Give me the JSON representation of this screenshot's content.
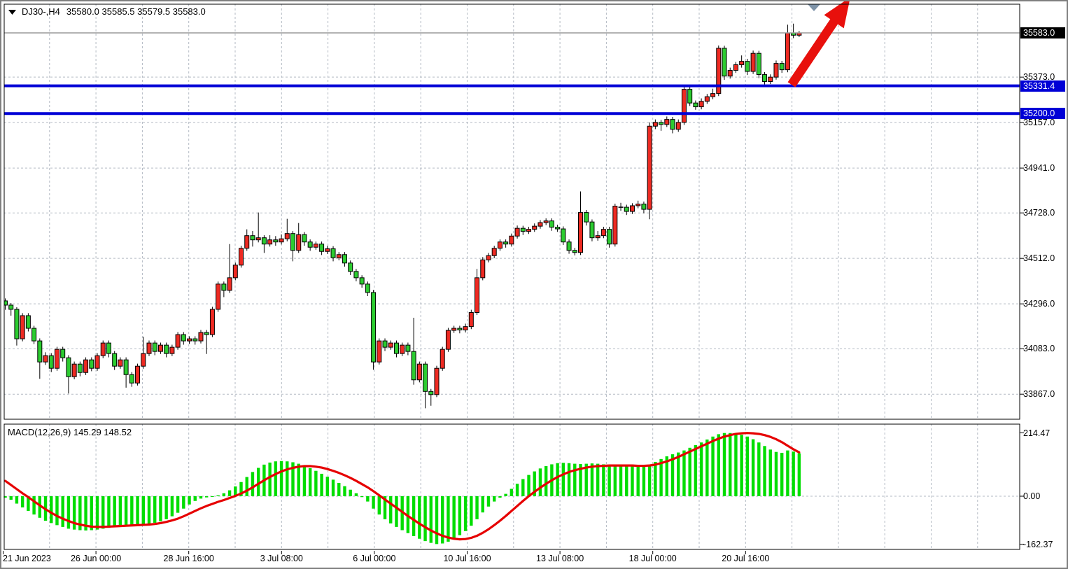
{
  "header": {
    "symbol_period": "DJ30-,H4",
    "ohlc_readout": "35580.0 35585.5 35579.5 35583.0"
  },
  "indicator_readout": {
    "name_params": "MACD(12,26,9)",
    "values": "145.29 148.52"
  },
  "colors": {
    "up_candle": "#ee2a22",
    "down_candle": "#2ccc30",
    "candle_border": "#000000",
    "wick": "#000000",
    "grid": "#b3bac3",
    "level_line": "#0000d6",
    "level_box_bg": "#0000d6",
    "current_price_line": "#9a9a9a",
    "current_price_bg": "#000000",
    "macd_histogram": "#00dd00",
    "macd_signal": "#e60000",
    "arrow": "#e8100c",
    "shift_marker": "#7e93a8",
    "panel_border": "#000000",
    "axis_text": "#000000"
  },
  "chart_data": [
    {
      "type": "candlestick",
      "symbol": "DJ30-",
      "timeframe": "H4",
      "grid": true,
      "y_ticks": [
        "35373.0",
        "35157.0",
        "34941.0",
        "34728.0",
        "34512.0",
        "34296.0",
        "34083.0",
        "33867.0"
      ],
      "x_labels": [
        "21 Jun 2023",
        "26 Jun 00:00",
        "28 Jun 16:00",
        "3 Jul 08:00",
        "6 Jul 00:00",
        "10 Jul 16:00",
        "13 Jul 08:00",
        "18 Jul 00:00",
        "20 Jul 16:00"
      ],
      "current_price": {
        "label": "35583.0",
        "value": 35583.0
      },
      "horizontal_levels": [
        {
          "label": "35331.4",
          "value": 35331.4
        },
        {
          "label": "35200.0",
          "value": 35200.0
        }
      ],
      "candles": [
        [
          34310,
          34322,
          34268,
          34290
        ],
        [
          34290,
          34300,
          34240,
          34270
        ],
        [
          34270,
          34280,
          34098,
          34130
        ],
        [
          34130,
          34252,
          34118,
          34240
        ],
        [
          34240,
          34252,
          34165,
          34180
        ],
        [
          34180,
          34192,
          34105,
          34120
        ],
        [
          34120,
          34132,
          33940,
          34020
        ],
        [
          34020,
          34066,
          34006,
          34050
        ],
        [
          34050,
          34062,
          33972,
          33990
        ],
        [
          33990,
          34092,
          33978,
          34080
        ],
        [
          34080,
          34092,
          34022,
          34040
        ],
        [
          34040,
          34052,
          33870,
          33950
        ],
        [
          33950,
          34022,
          33938,
          34010
        ],
        [
          34010,
          34022,
          33952,
          33970
        ],
        [
          33970,
          34042,
          33958,
          34030
        ],
        [
          34030,
          34042,
          33976,
          33990
        ],
        [
          33990,
          34062,
          33978,
          34050
        ],
        [
          34050,
          34122,
          34038,
          34110
        ],
        [
          34110,
          34122,
          34042,
          34060
        ],
        [
          34060,
          34072,
          33982,
          34000
        ],
        [
          34000,
          34042,
          33988,
          34030
        ],
        [
          34030,
          34042,
          33898,
          33960
        ],
        [
          33960,
          33972,
          33902,
          33920
        ],
        [
          33920,
          34012,
          33908,
          34000
        ],
        [
          34000,
          34140,
          33988,
          34060
        ],
        [
          34060,
          34122,
          34048,
          34110
        ],
        [
          34110,
          34122,
          34052,
          34070
        ],
        [
          34070,
          34112,
          34058,
          34100
        ],
        [
          34100,
          34112,
          34042,
          34060
        ],
        [
          34060,
          34102,
          34048,
          34090
        ],
        [
          34090,
          34162,
          34078,
          34150
        ],
        [
          34150,
          34162,
          34102,
          34120
        ],
        [
          34120,
          34142,
          34106,
          34130
        ],
        [
          34130,
          34142,
          34102,
          34120
        ],
        [
          34120,
          34172,
          34108,
          34160
        ],
        [
          34160,
          34172,
          34058,
          34150
        ],
        [
          34150,
          34282,
          34138,
          34270
        ],
        [
          34270,
          34402,
          34258,
          34390
        ],
        [
          34390,
          34402,
          34328,
          34360
        ],
        [
          34360,
          34580,
          34348,
          34420
        ],
        [
          34420,
          34492,
          34408,
          34480
        ],
        [
          34480,
          34572,
          34468,
          34560
        ],
        [
          34560,
          34650,
          34548,
          34620
        ],
        [
          34620,
          34642,
          34568,
          34600
        ],
        [
          34600,
          34730,
          34588,
          34610
        ],
        [
          34610,
          34622,
          34538,
          34580
        ],
        [
          34580,
          34622,
          34568,
          34600
        ],
        [
          34600,
          34618,
          34572,
          34590
        ],
        [
          34590,
          34626,
          34578,
          34605
        ],
        [
          34605,
          34700,
          34593,
          34630
        ],
        [
          34630,
          34642,
          34498,
          34550
        ],
        [
          34550,
          34680,
          34538,
          34625
        ],
        [
          34625,
          34637,
          34572,
          34590
        ],
        [
          34590,
          34602,
          34548,
          34565
        ],
        [
          34565,
          34592,
          34553,
          34580
        ],
        [
          34580,
          34592,
          34528,
          34545
        ],
        [
          34545,
          34572,
          34533,
          34558
        ],
        [
          34558,
          34570,
          34498,
          34515
        ],
        [
          34515,
          34542,
          34503,
          34530
        ],
        [
          34530,
          34542,
          34473,
          34490
        ],
        [
          34490,
          34502,
          34433,
          34450
        ],
        [
          34450,
          34462,
          34403,
          34420
        ],
        [
          34420,
          34432,
          34373,
          34390
        ],
        [
          34390,
          34402,
          34333,
          34350
        ],
        [
          34350,
          34362,
          33983,
          34020
        ],
        [
          34020,
          34132,
          34008,
          34120
        ],
        [
          34120,
          34132,
          34072,
          34090
        ],
        [
          34090,
          34122,
          34078,
          34110
        ],
        [
          34110,
          34122,
          34042,
          34060
        ],
        [
          34060,
          34112,
          34048,
          34100
        ],
        [
          34100,
          34112,
          34052,
          34070
        ],
        [
          34070,
          34230,
          33912,
          33935
        ],
        [
          33935,
          34022,
          33923,
          34010
        ],
        [
          34010,
          34022,
          33800,
          33880
        ],
        [
          33880,
          33892,
          33812,
          33865
        ],
        [
          33865,
          34002,
          33853,
          33990
        ],
        [
          33990,
          34092,
          33978,
          34080
        ],
        [
          34080,
          34182,
          34068,
          34170
        ],
        [
          34170,
          34192,
          34158,
          34180
        ],
        [
          34180,
          34192,
          34156,
          34172
        ],
        [
          34172,
          34202,
          34160,
          34188
        ],
        [
          34188,
          34268,
          34176,
          34255
        ],
        [
          34255,
          34462,
          34243,
          34420
        ],
        [
          34420,
          34518,
          34408,
          34505
        ],
        [
          34505,
          34538,
          34493,
          34525
        ],
        [
          34525,
          34572,
          34513,
          34560
        ],
        [
          34560,
          34602,
          34548,
          34590
        ],
        [
          34590,
          34602,
          34563,
          34580
        ],
        [
          34580,
          34630,
          34568,
          34618
        ],
        [
          34618,
          34668,
          34606,
          34655
        ],
        [
          34655,
          34667,
          34623,
          34640
        ],
        [
          34640,
          34662,
          34628,
          34650
        ],
        [
          34650,
          34678,
          34638,
          34665
        ],
        [
          34665,
          34694,
          34653,
          34682
        ],
        [
          34682,
          34702,
          34670,
          34690
        ],
        [
          34690,
          34702,
          34643,
          34660
        ],
        [
          34660,
          34672,
          34638,
          34652
        ],
        [
          34652,
          34664,
          34576,
          34590
        ],
        [
          34590,
          34602,
          34534,
          34550
        ],
        [
          34550,
          34562,
          34526,
          34540
        ],
        [
          34540,
          34830,
          34528,
          34730
        ],
        [
          34730,
          34742,
          34668,
          34685
        ],
        [
          34685,
          34697,
          34593,
          34610
        ],
        [
          34610,
          34642,
          34596,
          34620
        ],
        [
          34620,
          34662,
          34608,
          34650
        ],
        [
          34650,
          34662,
          34563,
          34580
        ],
        [
          34580,
          34772,
          34568,
          34760
        ],
        [
          34760,
          34776,
          34738,
          34755
        ],
        [
          34755,
          34767,
          34718,
          34735
        ],
        [
          34735,
          34774,
          34723,
          34762
        ],
        [
          34762,
          34786,
          34750,
          34770
        ],
        [
          34770,
          34782,
          34726,
          34745
        ],
        [
          34745,
          35158,
          34698,
          35140
        ],
        [
          35140,
          35172,
          35126,
          35158
        ],
        [
          35158,
          35170,
          35118,
          35148
        ],
        [
          35148,
          35186,
          35136,
          35172
        ],
        [
          35172,
          35184,
          35106,
          35125
        ],
        [
          35125,
          35172,
          35113,
          35158
        ],
        [
          35158,
          35328,
          35146,
          35315
        ],
        [
          35315,
          35327,
          35236,
          35250
        ],
        [
          35250,
          35262,
          35218,
          35232
        ],
        [
          35232,
          35272,
          35220,
          35258
        ],
        [
          35258,
          35293,
          35246,
          35280
        ],
        [
          35280,
          35318,
          35268,
          35295
        ],
        [
          35295,
          35523,
          35283,
          35510
        ],
        [
          35510,
          35522,
          35360,
          35378
        ],
        [
          35378,
          35418,
          35366,
          35405
        ],
        [
          35405,
          35445,
          35393,
          35432
        ],
        [
          35432,
          35476,
          35418,
          35448
        ],
        [
          35448,
          35460,
          35383,
          35400
        ],
        [
          35400,
          35499,
          35388,
          35486
        ],
        [
          35486,
          35498,
          35368,
          35385
        ],
        [
          35385,
          35397,
          35338,
          35352
        ],
        [
          35352,
          35386,
          35340,
          35373
        ],
        [
          35373,
          35452,
          35361,
          35438
        ],
        [
          35438,
          35450,
          35393,
          35408
        ],
        [
          35408,
          35622,
          35396,
          35583
        ],
        [
          35583,
          35627,
          35558,
          35572
        ],
        [
          35572,
          35592,
          35563,
          35583
        ]
      ]
    },
    {
      "type": "macd",
      "name": "MACD(12,26,9)",
      "y_ticks": [
        "214.47",
        "0.00",
        "-162.37"
      ],
      "last_macd": 145.29,
      "last_signal": 148.52,
      "histogram": [
        -5,
        -12,
        -25,
        -38,
        -50,
        -62,
        -73,
        -83,
        -91,
        -98,
        -104,
        -110,
        -113,
        -115,
        -116,
        -115,
        -113,
        -110,
        -107,
        -103,
        -100,
        -98,
        -97,
        -96,
        -95,
        -93,
        -90,
        -85,
        -78,
        -68,
        -56,
        -42,
        -28,
        -16,
        -8,
        -4,
        -2,
        3,
        10,
        20,
        33,
        48,
        65,
        82,
        96,
        107,
        114,
        118,
        119,
        118,
        115,
        110,
        103,
        95,
        86,
        76,
        66,
        56,
        45,
        34,
        22,
        10,
        -3,
        -18,
        -42,
        -62,
        -78,
        -92,
        -104,
        -115,
        -125,
        -135,
        -144,
        -152,
        -158,
        -162,
        -160,
        -154,
        -144,
        -132,
        -118,
        -100,
        -78,
        -55,
        -35,
        -18,
        -5,
        8,
        25,
        42,
        58,
        72,
        84,
        94,
        102,
        108,
        112,
        113,
        112,
        110,
        109,
        110,
        111,
        110,
        108,
        105,
        102,
        104,
        106,
        107,
        106,
        103,
        107,
        116,
        126,
        135,
        142,
        148,
        155,
        164,
        173,
        182,
        192,
        202,
        210,
        214,
        214,
        212,
        208,
        202,
        193,
        182,
        170,
        158,
        150,
        147,
        155,
        151,
        145.29
      ],
      "signal": [
        52,
        38,
        24,
        10,
        -3,
        -17,
        -31,
        -44,
        -56,
        -67,
        -76,
        -84,
        -91,
        -96,
        -100,
        -103,
        -104,
        -104,
        -103,
        -102,
        -101,
        -100,
        -99,
        -98,
        -97,
        -96,
        -94,
        -91,
        -87,
        -82,
        -76,
        -68,
        -59,
        -50,
        -41,
        -33,
        -26,
        -19,
        -13,
        -6,
        1,
        9,
        19,
        30,
        42,
        54,
        65,
        75,
        84,
        91,
        96,
        100,
        102,
        102,
        100,
        97,
        92,
        86,
        79,
        71,
        62,
        52,
        41,
        30,
        17,
        3,
        -11,
        -25,
        -39,
        -53,
        -67,
        -80,
        -93,
        -105,
        -116,
        -126,
        -134,
        -140,
        -144,
        -146,
        -145,
        -141,
        -134,
        -124,
        -112,
        -98,
        -83,
        -67,
        -50,
        -33,
        -16,
        0,
        15,
        29,
        42,
        54,
        65,
        74,
        82,
        88,
        93,
        97,
        100,
        102,
        103,
        104,
        104,
        104,
        104,
        104,
        103,
        103,
        104,
        107,
        112,
        118,
        125,
        133,
        142,
        151,
        160,
        169,
        178,
        187,
        195,
        202,
        207,
        211,
        213,
        214,
        213,
        211,
        207,
        201,
        193,
        183,
        171,
        159,
        148.52
      ]
    }
  ]
}
